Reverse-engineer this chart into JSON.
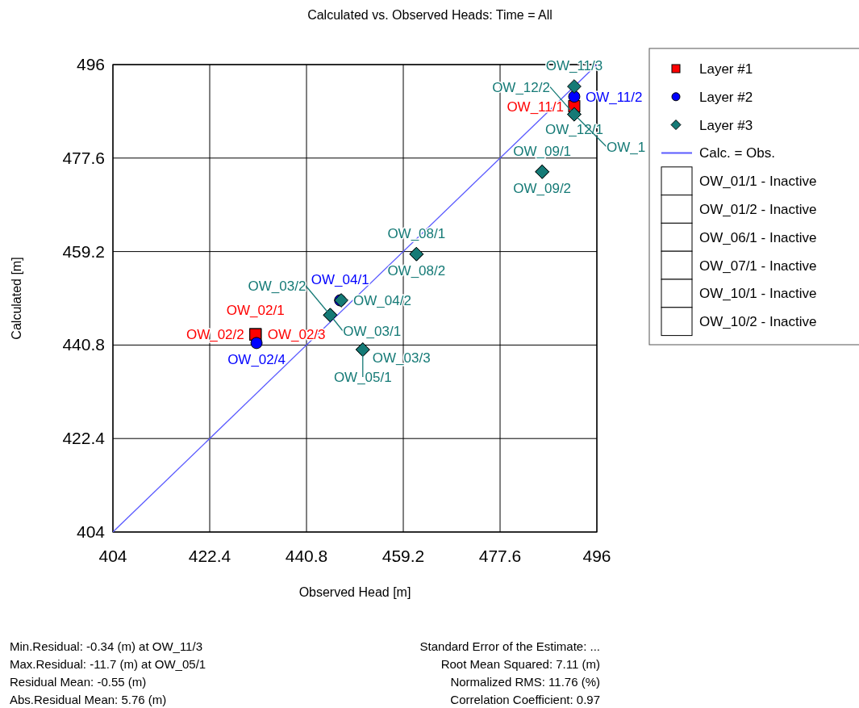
{
  "chart_data": {
    "type": "scatter",
    "title": "Calculated vs. Observed Heads: Time = All",
    "xlabel": "Observed Head [m]",
    "ylabel": "Calculated [m]",
    "xlim": [
      404,
      496
    ],
    "ylim": [
      404,
      496
    ],
    "xticks": [
      404,
      422.4,
      440.8,
      459.2,
      477.6,
      496
    ],
    "yticks": [
      404,
      422.4,
      440.8,
      459.2,
      477.6,
      496
    ],
    "grid": true,
    "legend": "top right",
    "series": [
      {
        "name": "Layer #1",
        "marker": "square",
        "color": "#ff0000",
        "x": [
          431.1,
          431.1,
          431.1,
          491.7
        ],
        "values": [
          442.9,
          442.9,
          442.9,
          487.8
        ],
        "value_labels": [
          "OW_02/1",
          "OW_02/2",
          "OW_02/3",
          "OW_11/1"
        ]
      },
      {
        "name": "Layer #2",
        "marker": "circle",
        "color": "#0000ff",
        "x": [
          431.3,
          447.2,
          491.7
        ],
        "values": [
          441.2,
          449.6,
          489.7
        ],
        "value_labels": [
          "OW_02/4",
          "OW_04/1",
          "OW_11/2"
        ]
      },
      {
        "name": "Layer #3",
        "marker": "diamond",
        "color": "#157a76",
        "x": [
          445.3,
          445.3,
          451.5,
          451.5,
          447.4,
          461.7,
          461.7,
          485.6,
          485.6,
          491.7,
          491.7,
          491.7
        ],
        "values": [
          446.7,
          446.7,
          439.9,
          439.9,
          449.6,
          458.7,
          458.7,
          474.9,
          474.9,
          491.7,
          486.2,
          486.2
        ],
        "value_labels": [
          "OW_03/1",
          "OW_03/2",
          "OW_03/3",
          "OW_05/1",
          "OW_04/2",
          "OW_08/1",
          "OW_08/2",
          "OW_09/1",
          "OW_09/2",
          "OW_11/3",
          "OW_12/1",
          "OW_12/2"
        ]
      },
      {
        "name": "Calc. = Obs.",
        "type": "line",
        "marker": "none",
        "color": "#5a5aff",
        "x": [
          404,
          496
        ],
        "values": [
          404,
          496
        ]
      },
      {
        "name": "OW_01/1 - Inactive",
        "marker": "none",
        "color": "#ffffff"
      },
      {
        "name": "OW_01/2 - Inactive",
        "marker": "none",
        "color": "#ffffff"
      },
      {
        "name": "OW_06/1 - Inactive",
        "marker": "none",
        "color": "#ffffff"
      },
      {
        "name": "OW_07/1 - Inactive",
        "marker": "none",
        "color": "#ffffff"
      },
      {
        "name": "OW_10/1 - Inactive",
        "marker": "none",
        "color": "#ffffff"
      },
      {
        "name": "OW_10/2 - Inactive",
        "marker": "none",
        "color": "#ffffff"
      }
    ],
    "annotations": [
      "Min.Residual: -0.34 (m) at OW_11/3",
      "Max.Residual: -11.7 (m) at OW_05/1",
      "Residual Mean: -0.55 (m)",
      "Abs.Residual Mean: 5.76 (m)",
      "Standard Error of the Estimate: ...",
      "Root Mean Squared: 7.11 (m)",
      "Normalized RMS: 11.76 (%)",
      "Correlation Coefficient: 0.97",
      {
        "text": "OW_1",
        "x": 491.7,
        "y": 486.2
      }
    ]
  }
}
